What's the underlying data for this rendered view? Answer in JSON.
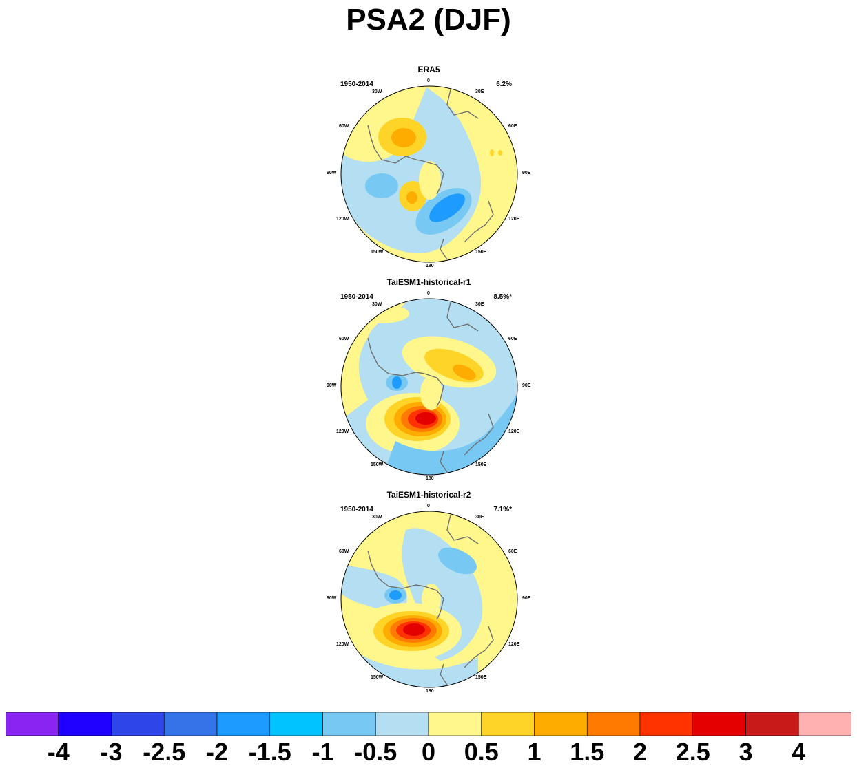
{
  "title": "PSA2 (DJF)",
  "panels": [
    {
      "model": "ERA5",
      "period": "1950-2014",
      "variance": "6.2%"
    },
    {
      "model": "TaiESM1-historical-r1",
      "period": "1950-2014",
      "variance": "8.5%*"
    },
    {
      "model": "TaiESM1-historical-r2",
      "period": "1950-2014",
      "variance": "7.1%*"
    }
  ],
  "longitude_labels": [
    "0",
    "30E",
    "60E",
    "90E",
    "120E",
    "150E",
    "180",
    "150W",
    "120W",
    "90W",
    "60W",
    "30W"
  ],
  "colorbar": {
    "ticks": [
      "-4",
      "-3",
      "-2.5",
      "-2",
      "-1.5",
      "-1",
      "-0.5",
      "0",
      "0.5",
      "1",
      "1.5",
      "2",
      "2.5",
      "3",
      "4"
    ],
    "colors": [
      "#8a24f2",
      "#1f00ff",
      "#2e45e8",
      "#3574e8",
      "#1e9bff",
      "#00c3ff",
      "#77c8f2",
      "#b4def2",
      "#fff68c",
      "#ffd428",
      "#ffac00",
      "#ff7a00",
      "#ff3300",
      "#e50000",
      "#c91a1a",
      "#ffb1b1"
    ]
  },
  "colors": {
    "land_outline": "#707070",
    "neg_weak": "#b4def2",
    "pos_weak": "#fff68c"
  }
}
